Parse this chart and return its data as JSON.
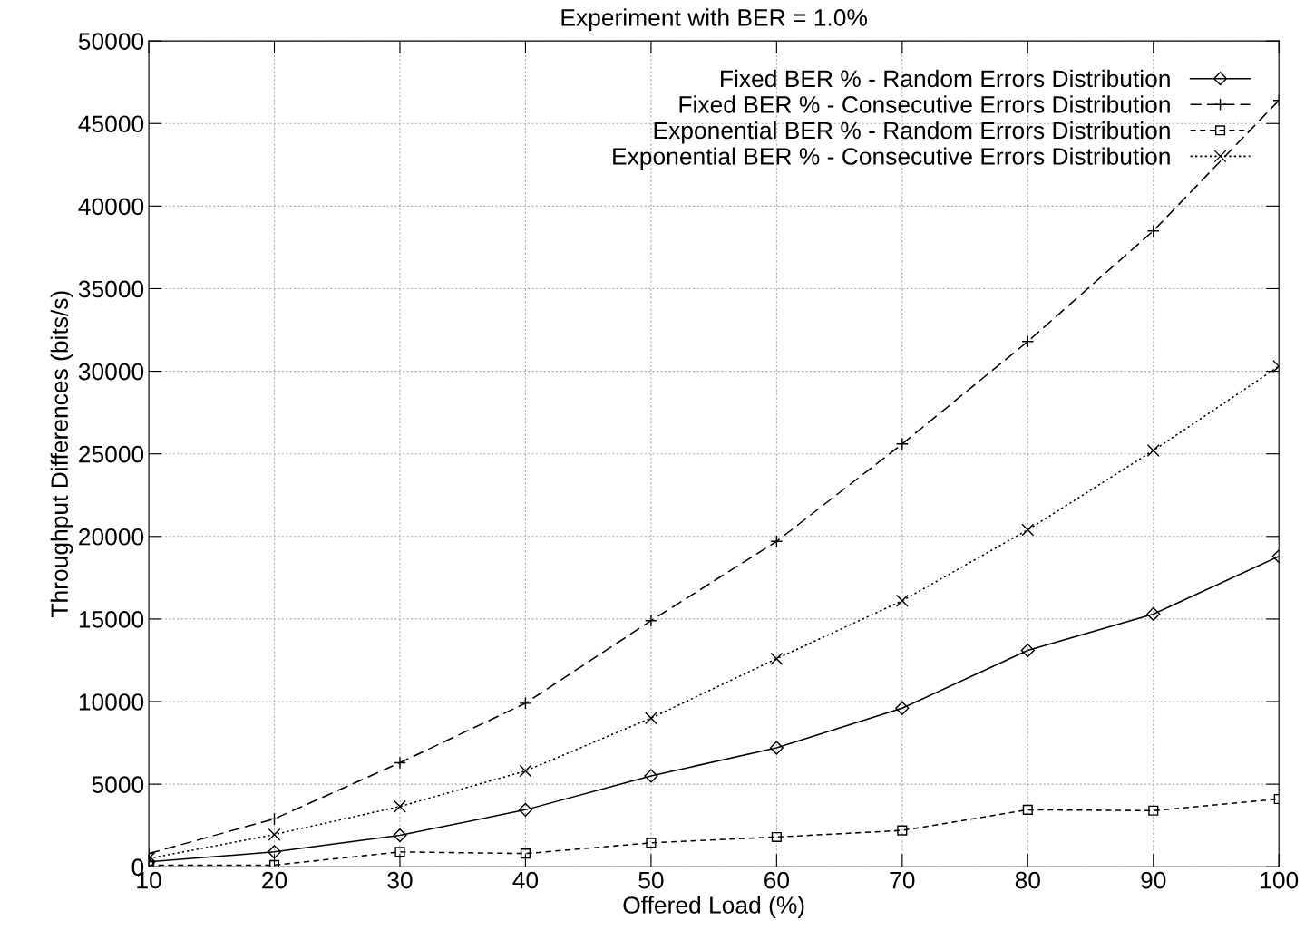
{
  "chart_data": {
    "type": "line",
    "title": "Experiment with BER = 1.0%",
    "xlabel": "Offered Load (%)",
    "ylabel": "Throughput Differences (bits/s)",
    "x": [
      10,
      20,
      30,
      40,
      50,
      60,
      70,
      80,
      90,
      100
    ],
    "xlim": [
      10,
      100
    ],
    "xticks": [
      10,
      20,
      30,
      40,
      50,
      60,
      70,
      80,
      90,
      100
    ],
    "ylim": [
      0,
      50000
    ],
    "yticks": [
      0,
      5000,
      10000,
      15000,
      20000,
      25000,
      30000,
      35000,
      40000,
      45000,
      50000
    ],
    "grid": true,
    "legend": "top right",
    "series": [
      {
        "name": "Fixed BER % - Random Errors Distribution",
        "color": "#000000",
        "marker": "diamond",
        "line_style": "solid",
        "values": [
          300,
          900,
          1900,
          3450,
          5500,
          7200,
          9600,
          13100,
          15300,
          18800
        ]
      },
      {
        "name": "Fixed BER % - Consecutive Errors Distribution",
        "color": "#000000",
        "marker": "plus",
        "line_style": "dashed",
        "values": [
          800,
          2900,
          6300,
          9900,
          14900,
          19700,
          25600,
          31800,
          38500,
          46400
        ]
      },
      {
        "name": "Exponential BER % - Random Errors Distribution",
        "color": "#000000",
        "marker": "square",
        "line_style": "densedash",
        "values": [
          100,
          100,
          900,
          800,
          1450,
          1800,
          2200,
          3450,
          3400,
          4100
        ]
      },
      {
        "name": "Exponential BER % - Consecutive Errors Distribution",
        "color": "#000000",
        "marker": "cross",
        "line_style": "dotted",
        "values": [
          500,
          1950,
          3650,
          5800,
          9000,
          12600,
          16100,
          20400,
          25200,
          30300
        ]
      }
    ]
  }
}
